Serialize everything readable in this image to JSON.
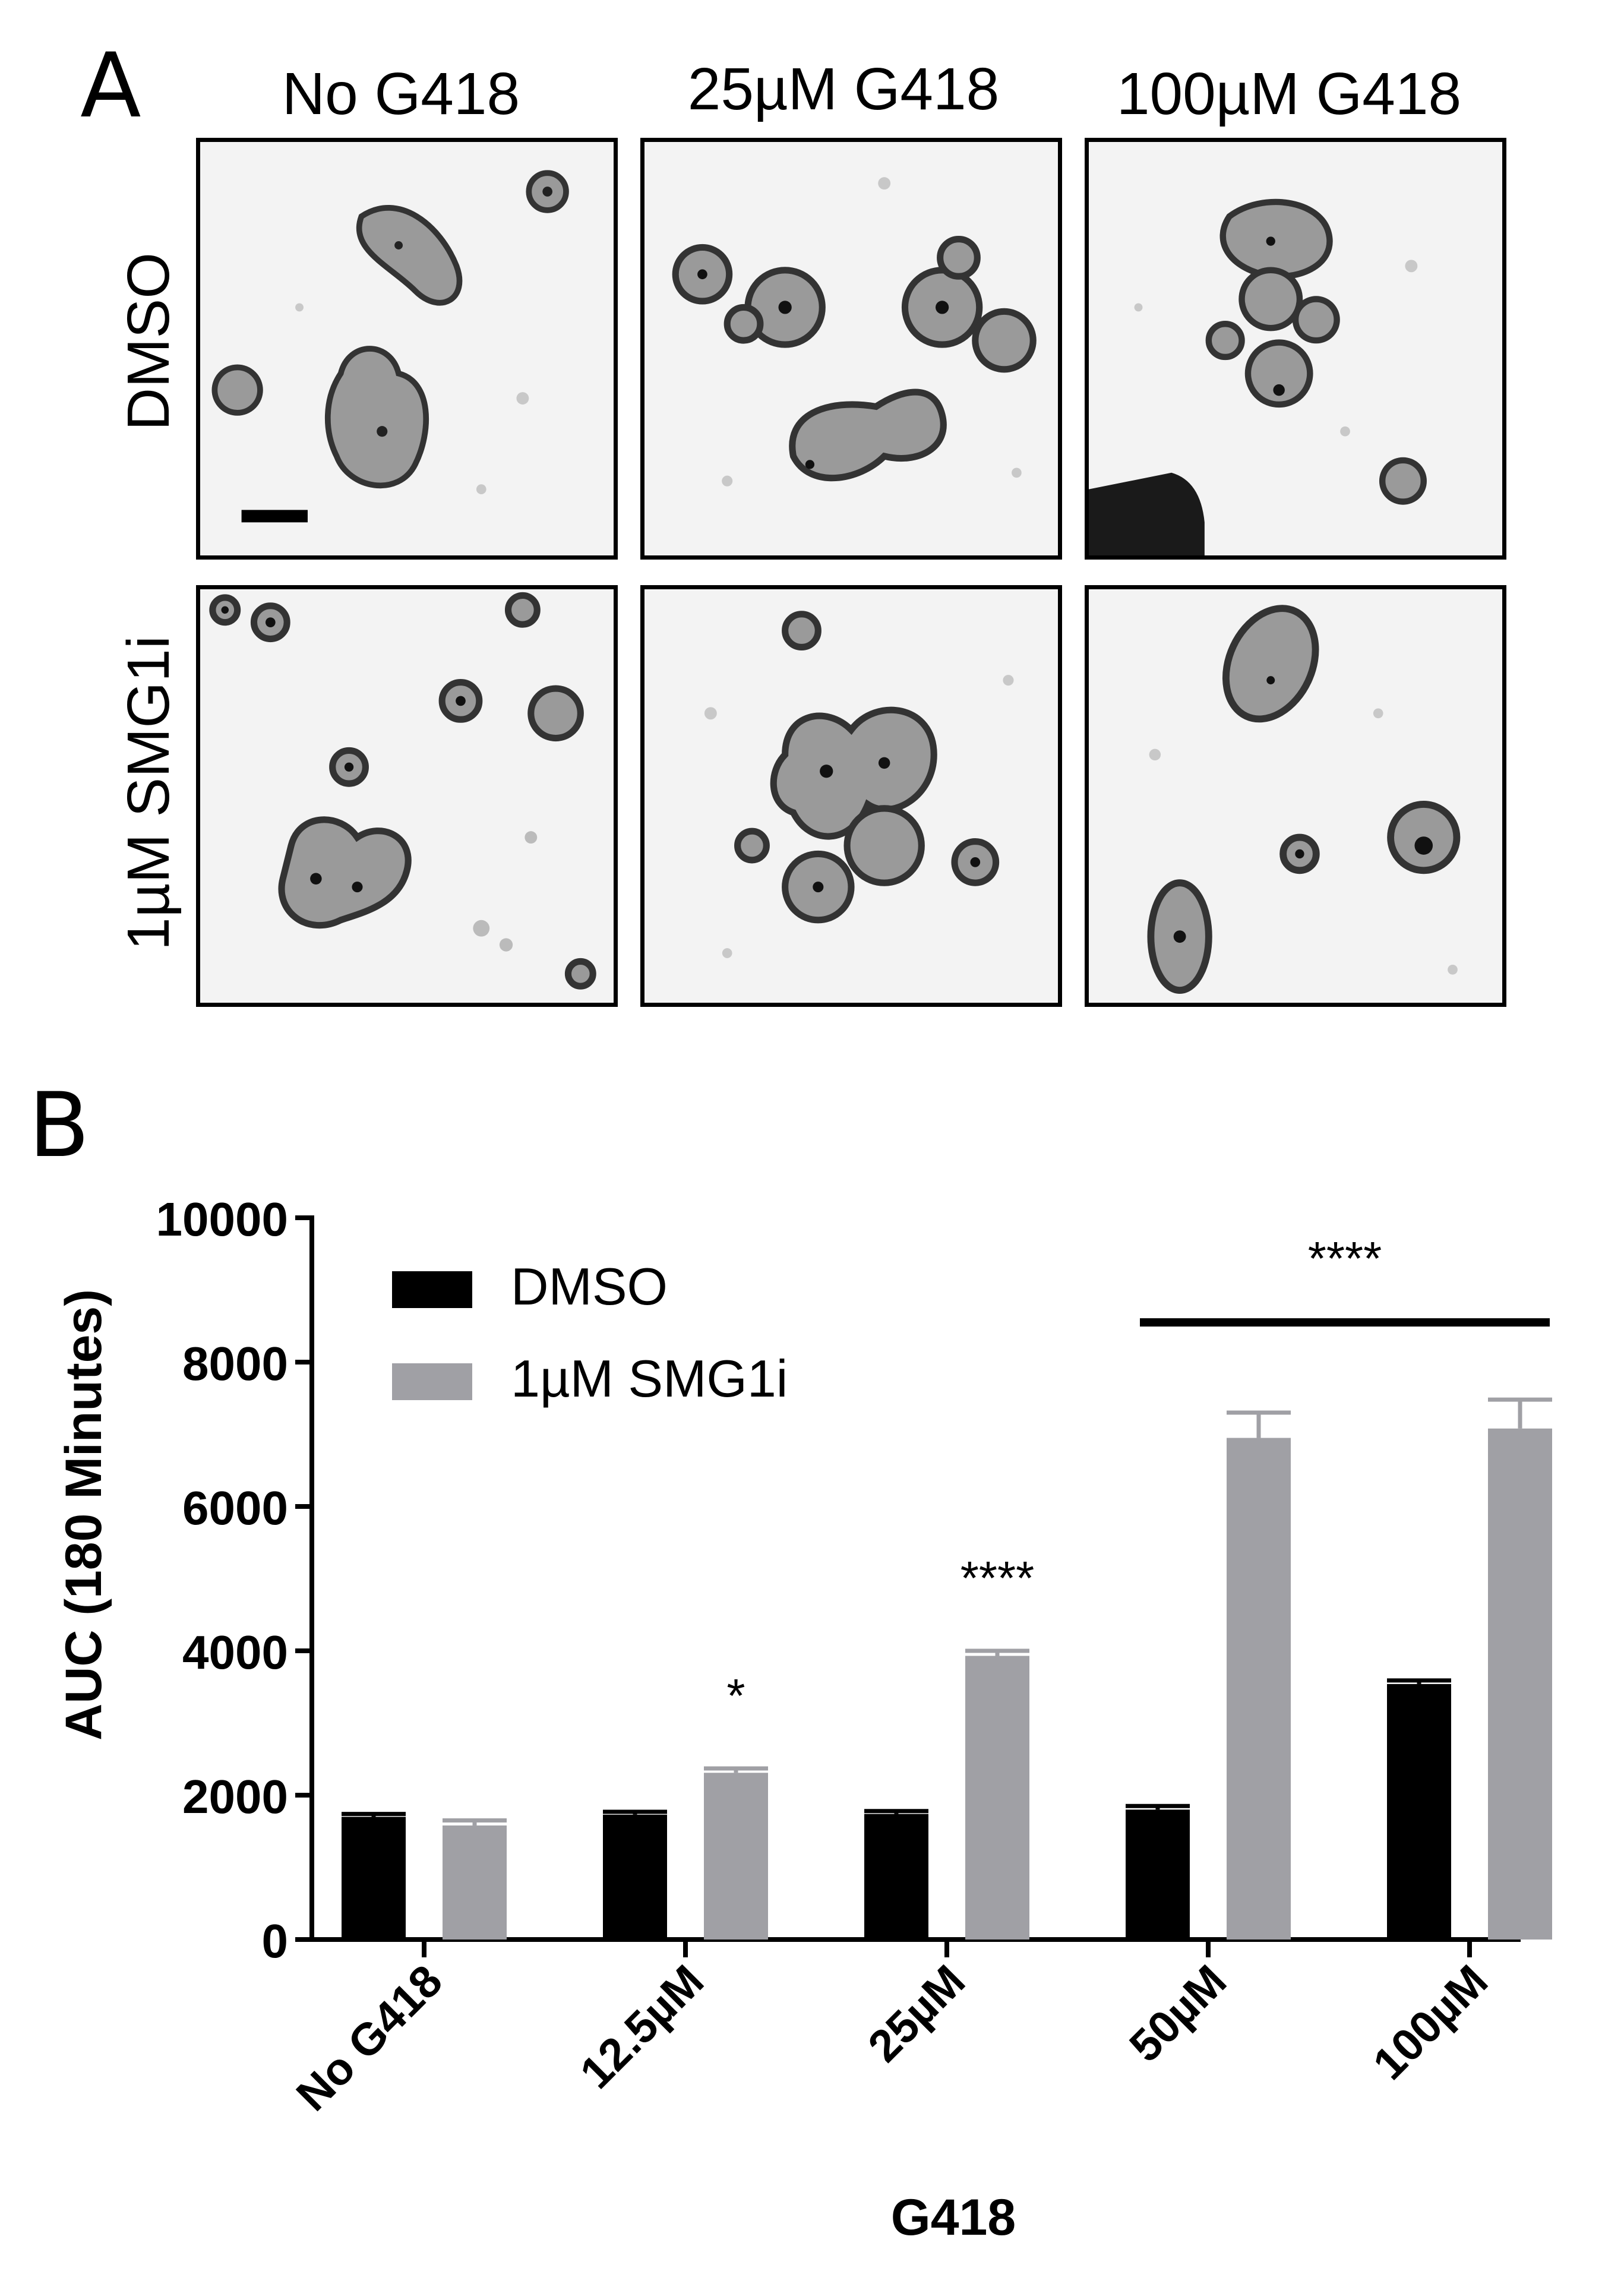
{
  "figure": {
    "panel_a_letter": "A",
    "panel_b_letter": "B",
    "column_labels": [
      "No G418",
      "25µM G418",
      "100µM G418"
    ],
    "row_labels": [
      "DMSO",
      "1µM SMG1i"
    ],
    "micrographs": [
      {
        "row": "DMSO",
        "column": "No G418",
        "content": "organoid-micrograph",
        "has_scale_bar": true
      },
      {
        "row": "DMSO",
        "column": "25µM G418",
        "content": "organoid-micrograph"
      },
      {
        "row": "DMSO",
        "column": "100µM G418",
        "content": "organoid-micrograph"
      },
      {
        "row": "1µM SMG1i",
        "column": "No G418",
        "content": "organoid-micrograph"
      },
      {
        "row": "1µM SMG1i",
        "column": "25µM G418",
        "content": "organoid-micrograph"
      },
      {
        "row": "1µM SMG1i",
        "column": "100µM G418",
        "content": "organoid-micrograph"
      }
    ]
  },
  "chart_data": {
    "type": "bar",
    "title": "",
    "xlabel": "G418",
    "ylabel": "AUC (180 Minutes)",
    "ylim": [
      0,
      10000
    ],
    "yticks": [
      0,
      2000,
      4000,
      6000,
      8000,
      10000
    ],
    "categories": [
      "No G418",
      "12.5µM",
      "25µM",
      "50µM",
      "100µM"
    ],
    "series": [
      {
        "name": "DMSO",
        "color": "#000000",
        "values": [
          1700,
          1730,
          1740,
          1800,
          3540
        ],
        "errors": [
          40,
          40,
          40,
          50,
          50
        ]
      },
      {
        "name": "1µM SMG1i",
        "color": "#a0a0a5",
        "values": [
          1580,
          2310,
          3930,
          6950,
          7080
        ],
        "errors": [
          70,
          60,
          70,
          350,
          400
        ]
      }
    ],
    "significance": [
      {
        "label": "*",
        "category_index": 1,
        "series": "1µM SMG1i"
      },
      {
        "label": "****",
        "category_index": 2,
        "series": "1µM SMG1i"
      },
      {
        "label": "****",
        "category_range": [
          3,
          4
        ],
        "series": "1µM SMG1i",
        "bracket": true
      }
    ],
    "legend_position": "top-left",
    "grid": false
  }
}
